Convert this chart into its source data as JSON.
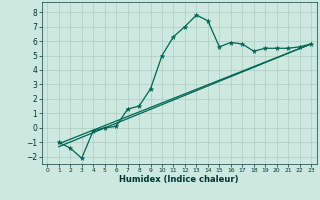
{
  "xlabel": "Humidex (Indice chaleur)",
  "xlim": [
    -0.5,
    23.5
  ],
  "ylim": [
    -2.5,
    8.7
  ],
  "yticks": [
    -2,
    -1,
    0,
    1,
    2,
    3,
    4,
    5,
    6,
    7,
    8
  ],
  "xticks": [
    0,
    1,
    2,
    3,
    4,
    5,
    6,
    7,
    8,
    9,
    10,
    11,
    12,
    13,
    14,
    15,
    16,
    17,
    18,
    19,
    20,
    21,
    22,
    23
  ],
  "bg_color": "#cce8df",
  "grid_color": "#aaccc4",
  "line_color": "#006655",
  "line1_x": [
    1,
    2,
    3,
    4,
    5,
    6,
    7,
    8,
    9,
    10,
    11,
    12,
    13,
    14,
    15,
    16,
    17,
    18,
    19,
    20,
    21,
    22,
    23
  ],
  "line1_y": [
    -1.0,
    -1.4,
    -2.1,
    -0.2,
    0.0,
    0.1,
    1.3,
    1.5,
    2.7,
    5.0,
    6.3,
    7.0,
    7.8,
    7.4,
    5.6,
    5.9,
    5.8,
    5.3,
    5.5,
    5.5,
    5.5,
    5.6,
    5.8
  ],
  "line2_x": [
    1,
    23
  ],
  "line2_y": [
    -1.1,
    5.8
  ],
  "line3_x": [
    1,
    23
  ],
  "line3_y": [
    -1.3,
    5.8
  ]
}
